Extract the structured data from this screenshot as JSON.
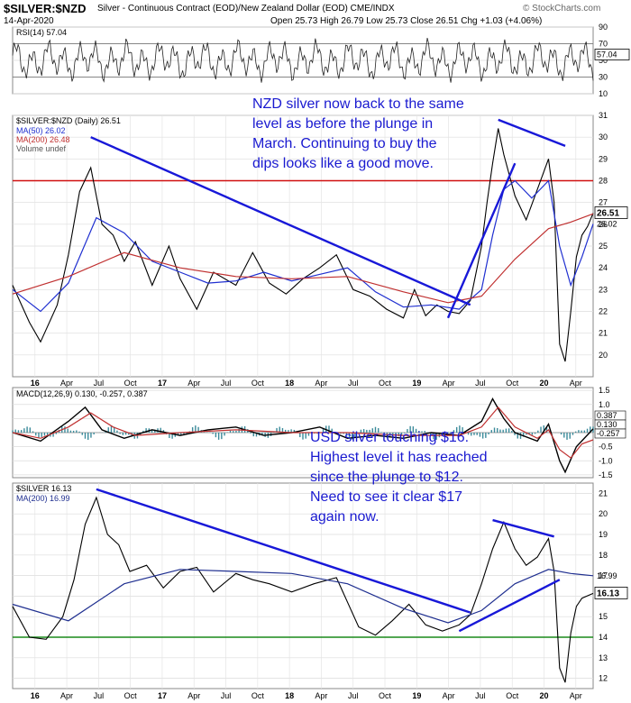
{
  "header": {
    "symbol": "$SILVER:$NZD",
    "description": "Silver - Continuous Contract (EOD)/New Zealand Dollar (EOD) CME/INDX",
    "date": "14-Apr-2020",
    "ohlc": "Open 25.73  High 26.79  Low 25.73  Close 26.51  Chg +1.03 (+4.06%)",
    "watermark": "© StockCharts.com"
  },
  "chart_data": [
    {
      "type": "line",
      "title": "RSI(14) 57.04",
      "y_ticks": [
        "90",
        "70",
        "50",
        "30",
        "10"
      ],
      "ylim": [
        10,
        90
      ],
      "reference_lines": [
        70,
        30
      ],
      "last_value": 57.04,
      "last_value_label": "57.04",
      "series": [
        {
          "name": "RSI(14)",
          "color": "#222222"
        }
      ]
    },
    {
      "type": "line",
      "title": "$SILVER:$NZD (Daily) 26.51",
      "legend": [
        "MA(50) 26.02",
        "MA(200) 26.48",
        "Volume undef"
      ],
      "y_ticks": [
        "31",
        "30",
        "29",
        "28",
        "27",
        "26",
        "25",
        "24",
        "23",
        "22",
        "21",
        "20"
      ],
      "ylim": [
        19,
        31
      ],
      "x_ticks": [
        "16",
        "Apr",
        "Jul",
        "Oct",
        "17",
        "Apr",
        "Jul",
        "Oct",
        "18",
        "Apr",
        "Jul",
        "Oct",
        "19",
        "Apr",
        "Jul",
        "Oct",
        "20",
        "Apr"
      ],
      "last_price": 26.51,
      "last_price_label": "26.51",
      "ma50_label": "26.02",
      "horizontal_line": 28,
      "annotation": "NZD silver now back to the same level as before the plunge in March. Continuing to buy the dips looks like a good move.",
      "series": [
        {
          "name": "$SILVER:$NZD",
          "color": "#000000",
          "x": [
            0,
            3,
            5,
            8,
            10,
            12,
            14,
            16,
            18,
            20,
            22,
            25,
            28,
            30,
            33,
            36,
            40,
            43,
            46,
            49,
            52,
            55,
            58,
            61,
            64,
            67,
            70,
            72,
            74,
            76,
            78,
            80,
            82,
            84,
            85,
            86,
            87,
            88,
            90,
            92,
            94,
            96,
            97,
            98,
            99,
            100,
            101,
            102,
            103,
            104
          ],
          "y": [
            23.2,
            21.5,
            20.6,
            22.3,
            24.6,
            27.5,
            28.6,
            26.0,
            25.5,
            24.3,
            25.2,
            23.2,
            25.0,
            23.5,
            22.1,
            23.8,
            23.2,
            24.7,
            23.3,
            22.8,
            23.5,
            24.0,
            24.6,
            23.0,
            22.7,
            22.1,
            21.7,
            23.0,
            21.8,
            22.3,
            22.0,
            21.9,
            22.5,
            25.0,
            27.0,
            28.8,
            30.4,
            29.2,
            27.3,
            26.2,
            27.6,
            29.0,
            27.0,
            20.5,
            19.7,
            22.0,
            24.5,
            25.5,
            25.9,
            26.51
          ]
        },
        {
          "name": "MA(50)",
          "color": "#1f2fd0",
          "x": [
            0,
            5,
            10,
            15,
            20,
            25,
            30,
            35,
            40,
            45,
            50,
            55,
            60,
            65,
            70,
            75,
            80,
            84,
            86,
            88,
            90,
            93,
            96,
            98,
            100,
            102,
            104
          ],
          "y": [
            23.0,
            22.0,
            23.3,
            26.3,
            25.6,
            24.3,
            23.8,
            23.3,
            23.4,
            23.8,
            23.4,
            23.7,
            24.0,
            22.9,
            22.2,
            22.3,
            22.1,
            23.0,
            25.5,
            27.6,
            28.0,
            27.2,
            28.0,
            25.0,
            23.2,
            24.5,
            26.02
          ]
        },
        {
          "name": "MA(200)",
          "color": "#c03030",
          "x": [
            0,
            10,
            20,
            30,
            40,
            50,
            60,
            70,
            78,
            84,
            90,
            96,
            100,
            104
          ],
          "y": [
            22.8,
            23.6,
            24.7,
            24.0,
            23.6,
            23.5,
            23.6,
            22.9,
            22.4,
            22.7,
            24.4,
            25.8,
            26.1,
            26.48
          ]
        }
      ]
    },
    {
      "type": "line",
      "title": "MACD(12,26,9) 0.130, -0.257, 0.387",
      "y_ticks": [
        "1.5",
        "1.0",
        "0.5",
        "0.0",
        "-0.5",
        "-1.0",
        "-1.5"
      ],
      "ylim": [
        -1.6,
        1.6
      ],
      "labels": [
        "0.387",
        "0.130",
        "-0.257"
      ],
      "series": [
        {
          "name": "MACD",
          "color": "#000000",
          "x": [
            0,
            5,
            10,
            13,
            16,
            20,
            25,
            30,
            35,
            40,
            45,
            50,
            55,
            60,
            65,
            70,
            75,
            80,
            84,
            86,
            88,
            90,
            94,
            96,
            98,
            99,
            101,
            104
          ],
          "y": [
            0.0,
            -0.3,
            0.4,
            0.9,
            0.1,
            -0.2,
            0.1,
            -0.1,
            0.1,
            0.2,
            -0.1,
            0.0,
            0.2,
            -0.2,
            -0.1,
            -0.2,
            0.0,
            -0.1,
            0.4,
            1.2,
            0.5,
            0.0,
            -0.3,
            0.3,
            -1.0,
            -1.4,
            -0.5,
            0.13
          ]
        },
        {
          "name": "Signal",
          "color": "#c03030",
          "x": [
            0,
            5,
            10,
            14,
            18,
            22,
            30,
            40,
            50,
            60,
            70,
            80,
            84,
            87,
            90,
            94,
            96,
            98,
            100,
            102,
            104
          ],
          "y": [
            0.0,
            -0.2,
            0.2,
            0.7,
            0.2,
            -0.1,
            0.0,
            0.1,
            0.0,
            0.0,
            -0.1,
            -0.1,
            0.2,
            0.9,
            0.2,
            -0.2,
            0.1,
            -0.6,
            -0.9,
            -0.4,
            -0.257
          ]
        },
        {
          "name": "Histogram",
          "color": "#3a8a9a",
          "x": [
            0,
            10,
            14,
            20,
            30,
            40,
            50,
            60,
            70,
            80,
            85,
            88,
            95,
            98,
            100,
            104
          ],
          "y": [
            0.0,
            0.1,
            0.2,
            -0.1,
            0.0,
            0.05,
            0.0,
            0.0,
            -0.05,
            0.0,
            0.2,
            0.3,
            -0.1,
            -0.4,
            -0.5,
            0.387
          ]
        }
      ]
    },
    {
      "type": "line",
      "title": "$SILVER 16.13",
      "legend": [
        "MA(200) 16.99"
      ],
      "y_ticks": [
        "21",
        "20",
        "19",
        "18",
        "17",
        "16",
        "15",
        "14",
        "13",
        "12"
      ],
      "ylim": [
        11.5,
        21.5
      ],
      "x_ticks": [
        "16",
        "Apr",
        "Jul",
        "Oct",
        "17",
        "Apr",
        "Jul",
        "Oct",
        "18",
        "Apr",
        "Jul",
        "Oct",
        "19",
        "Apr",
        "Jul",
        "Oct",
        "20",
        "Apr"
      ],
      "last_price": 16.13,
      "last_price_label": "16.13",
      "ma200_label": "16.99",
      "horizontal_line": 14,
      "annotation": "USD silver touching $16. Highest level it has reached since the plunge to $12. Need to see it clear $17 again now.",
      "series": [
        {
          "name": "$SILVER",
          "color": "#000000",
          "x": [
            0,
            3,
            6,
            9,
            11,
            13,
            15,
            17,
            19,
            21,
            24,
            27,
            30,
            33,
            36,
            40,
            43,
            46,
            50,
            54,
            58,
            62,
            65,
            68,
            71,
            74,
            77,
            80,
            82,
            84,
            86,
            88,
            90,
            92,
            94,
            96,
            97,
            98,
            99,
            100,
            101,
            102,
            104
          ],
          "y": [
            15.5,
            14.0,
            13.9,
            15.0,
            16.8,
            19.5,
            20.8,
            19.0,
            18.5,
            17.2,
            17.5,
            16.4,
            17.2,
            17.4,
            16.2,
            17.1,
            16.8,
            16.6,
            16.2,
            16.6,
            16.9,
            14.5,
            14.1,
            14.8,
            15.6,
            14.6,
            14.3,
            14.6,
            15.1,
            16.6,
            18.3,
            19.6,
            18.3,
            17.5,
            17.9,
            18.8,
            17.2,
            12.5,
            11.8,
            14.2,
            15.5,
            15.9,
            16.13
          ]
        },
        {
          "name": "MA(200)",
          "color": "#1f2f90",
          "x": [
            0,
            10,
            20,
            30,
            40,
            50,
            60,
            70,
            78,
            84,
            90,
            96,
            100,
            104
          ],
          "y": [
            15.6,
            14.8,
            16.6,
            17.3,
            17.2,
            17.1,
            16.6,
            15.4,
            14.7,
            15.3,
            16.6,
            17.3,
            17.1,
            16.99
          ]
        }
      ]
    }
  ]
}
